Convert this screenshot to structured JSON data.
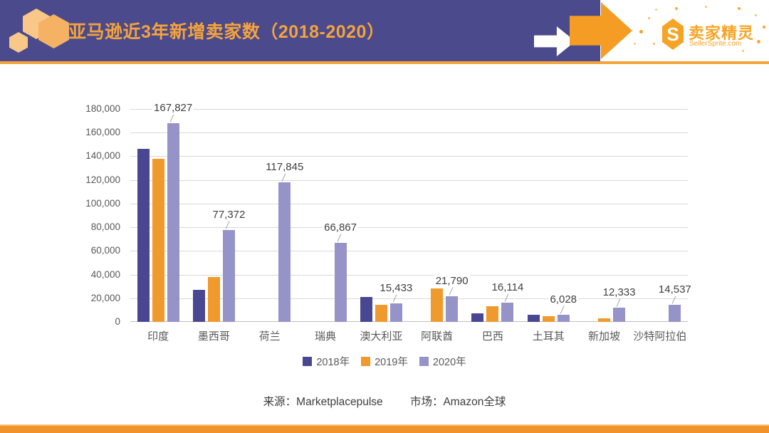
{
  "header": {
    "title": "亚马逊近3年新增卖家数（2018-2020）"
  },
  "logo": {
    "initial": "S",
    "name": "卖家精灵",
    "domain": "SellerSprite.com"
  },
  "footer": {
    "source": "来源：Marketplacepulse",
    "market": "市场：Amazon全球"
  },
  "colors": {
    "header_bg": "#4A4A8C",
    "accent_orange": "#F5A43B",
    "series_2018": "#4A4792",
    "series_2019": "#F0992C",
    "series_2020": "#9693C9"
  },
  "chart_data": {
    "type": "bar",
    "title": "亚马逊近3年新增卖家数（2018-2020）",
    "categories": [
      "印度",
      "墨西哥",
      "荷兰",
      "瑞典",
      "澳大利亚",
      "阿联酋",
      "巴西",
      "土耳其",
      "新加坡",
      "沙特阿拉伯"
    ],
    "series": [
      {
        "name": "2018年",
        "color": "#4A4792",
        "values": [
          146000,
          27000,
          0,
          0,
          21000,
          0,
          7200,
          6200,
          0,
          0
        ],
        "labeled": false
      },
      {
        "name": "2019年",
        "color": "#F0992C",
        "values": [
          138000,
          38000,
          0,
          0,
          14500,
          28000,
          13500,
          4600,
          3200,
          0
        ],
        "labeled": false
      },
      {
        "name": "2020年",
        "color": "#9693C9",
        "values": [
          167827,
          77372,
          117845,
          66867,
          15433,
          21790,
          16114,
          6028,
          12333,
          14537
        ],
        "labeled": true
      }
    ],
    "data_labels": [
      "167,827",
      "77,372",
      "117,845",
      "66,867",
      "15,433",
      "21,790",
      "16,114",
      "6,028",
      "12,333",
      "14,537"
    ],
    "xlabel": "",
    "ylabel": "",
    "ylim": [
      0,
      180000
    ],
    "ytick_step": 20000,
    "yticks": [
      "0",
      "20,000",
      "40,000",
      "60,000",
      "80,000",
      "100,000",
      "120,000",
      "140,000",
      "160,000",
      "180,000"
    ],
    "grid": true,
    "legend_position": "bottom"
  }
}
